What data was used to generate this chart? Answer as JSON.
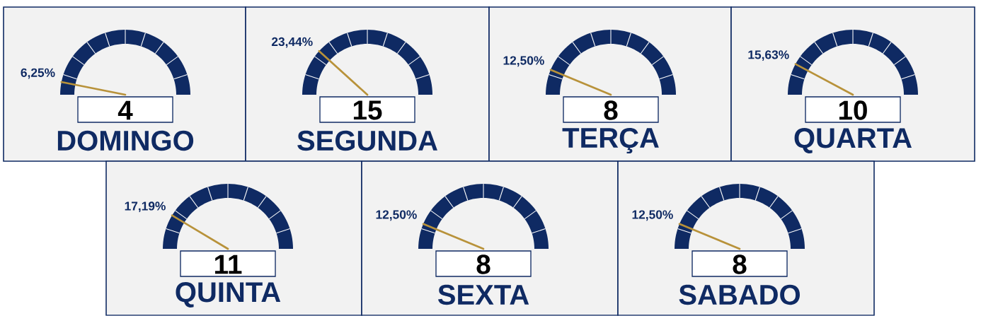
{
  "chart_data": [
    {
      "type": "other",
      "title": "DOMINGO",
      "values": [
        6.25
      ],
      "value_labels": [
        "6,25%"
      ],
      "annotations": [
        "4"
      ]
    },
    {
      "type": "other",
      "title": "SEGUNDA",
      "values": [
        23.44
      ],
      "value_labels": [
        "23,44%"
      ],
      "annotations": [
        "15"
      ]
    },
    {
      "type": "other",
      "title": "TERÇA",
      "values": [
        12.5
      ],
      "value_labels": [
        "12,50%"
      ],
      "annotations": [
        "8"
      ]
    },
    {
      "type": "other",
      "title": "QUARTA",
      "values": [
        15.63
      ],
      "value_labels": [
        "15,63%"
      ],
      "annotations": [
        "10"
      ]
    },
    {
      "type": "other",
      "title": "QUINTA",
      "values": [
        17.19
      ],
      "value_labels": [
        "17,19%"
      ],
      "annotations": [
        "11"
      ]
    },
    {
      "type": "other",
      "title": "SEXTA",
      "values": [
        12.5
      ],
      "value_labels": [
        "12,50%"
      ],
      "annotations": [
        "8"
      ]
    },
    {
      "type": "other",
      "title": "SABADO",
      "values": [
        12.5
      ],
      "value_labels": [
        "12,50%"
      ],
      "annotations": [
        "8"
      ]
    }
  ]
}
